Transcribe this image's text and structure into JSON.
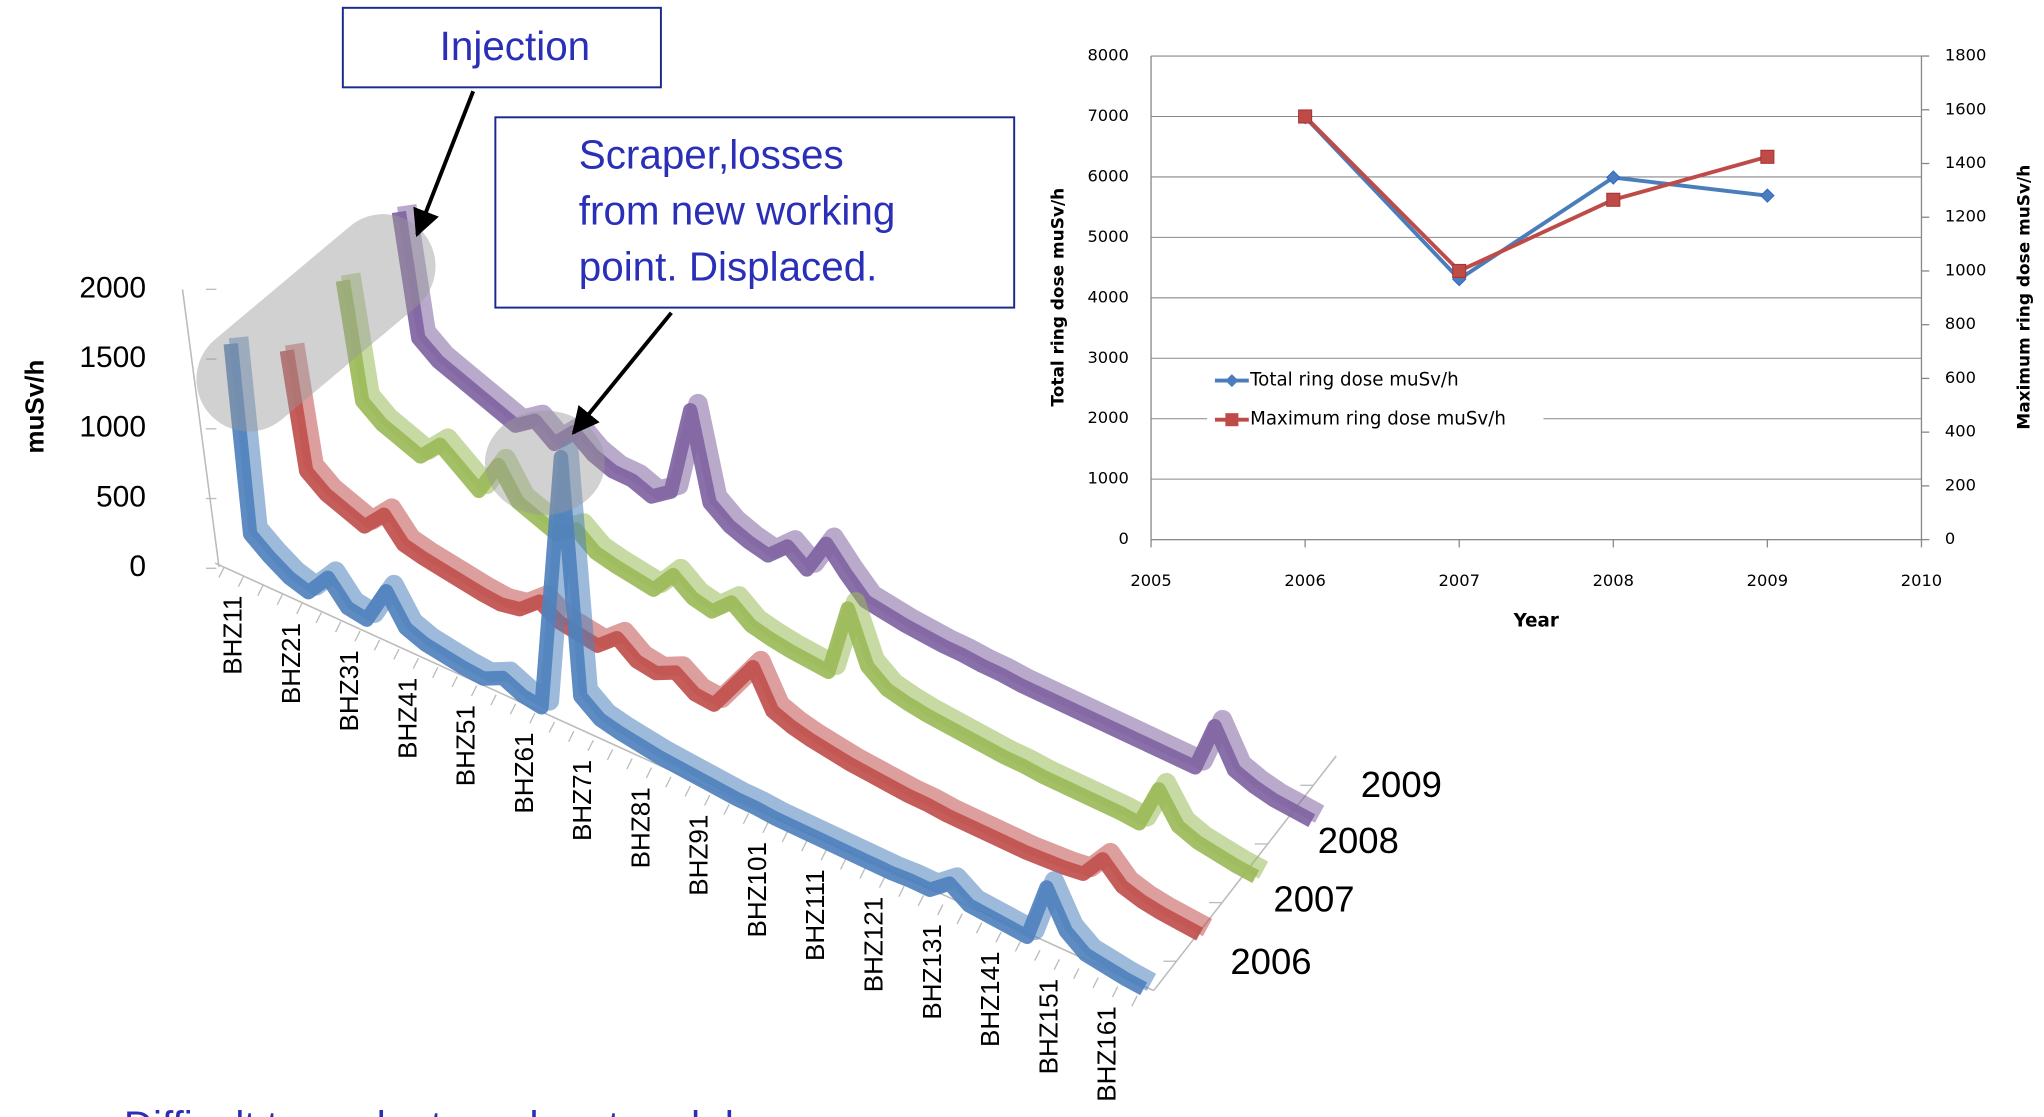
{
  "chart_data": [
    {
      "type": "ribbon3d",
      "y_label": "muSv/h",
      "ylim": [
        0,
        2000
      ],
      "yticks": [
        0,
        500,
        1000,
        1500,
        2000
      ],
      "categories": [
        "BHZ11",
        null,
        null,
        "BHZ21",
        null,
        null,
        "BHZ31",
        null,
        null,
        "BHZ41",
        null,
        null,
        "BHZ51",
        null,
        null,
        "BHZ61",
        null,
        null,
        "BHZ71",
        null,
        null,
        "BHZ81",
        null,
        null,
        "BHZ91",
        null,
        null,
        "BHZ101",
        null,
        null,
        "BHZ111",
        null,
        null,
        "BHZ121",
        null,
        null,
        "BHZ131",
        null,
        null,
        "BHZ141",
        null,
        null,
        "BHZ151",
        null,
        null,
        "BHZ161",
        null,
        null
      ],
      "series": [
        {
          "name": "2006",
          "color": "#4f81bd",
          "values": [
            1600,
            300,
            200,
            120,
            80,
            250,
            100,
            80,
            350,
            150,
            100,
            80,
            60,
            50,
            120,
            60,
            40,
            1900,
            250,
            150,
            120,
            100,
            80,
            70,
            60,
            50,
            40,
            40,
            30,
            30,
            30,
            30,
            30,
            30,
            30,
            40,
            40,
            150,
            60,
            50,
            40,
            30,
            450,
            200,
            100,
            80,
            60,
            50
          ]
        },
        {
          "name": "2007",
          "color": "#c0504d",
          "values": [
            1150,
            350,
            250,
            200,
            150,
            300,
            150,
            120,
            100,
            80,
            60,
            50,
            80,
            200,
            120,
            100,
            80,
            200,
            100,
            80,
            150,
            60,
            50,
            250,
            450,
            200,
            150,
            120,
            100,
            80,
            70,
            60,
            50,
            50,
            40,
            40,
            40,
            40,
            40,
            50,
            60,
            80,
            250,
            120,
            80,
            60,
            50,
            40
          ]
        },
        {
          "name": "2008",
          "color": "#9bbb59",
          "values": [
            1250,
            450,
            350,
            300,
            250,
            400,
            300,
            200,
            450,
            250,
            200,
            150,
            250,
            150,
            120,
            100,
            80,
            250,
            150,
            120,
            250,
            150,
            120,
            100,
            90,
            80,
            600,
            250,
            150,
            120,
            100,
            90,
            80,
            70,
            60,
            60,
            50,
            50,
            50,
            50,
            50,
            40,
            350,
            150,
            100,
            80,
            60,
            50
          ]
        },
        {
          "name": "2009",
          "color": "#8064a2",
          "values": [
            1340,
            500,
            400,
            350,
            300,
            250,
            200,
            300,
            200,
            350,
            250,
            200,
            200,
            150,
            250,
            900,
            300,
            200,
            150,
            120,
            250,
            150,
            400,
            250,
            120,
            100,
            80,
            70,
            60,
            60,
            50,
            50,
            40,
            40,
            40,
            40,
            40,
            40,
            40,
            40,
            40,
            40,
            400,
            150,
            100,
            70,
            60,
            50
          ]
        }
      ],
      "annotations": [
        [
          "Injection"
        ],
        [
          "Scraper,losses",
          "from new working",
          "point. Displaced."
        ]
      ]
    },
    {
      "type": "line",
      "x_label": "Year",
      "y_label": "Total ring dose muSv/h",
      "y2_label": "Maximum ring dose muSv/h",
      "x": [
        2006,
        2007,
        2008,
        2009
      ],
      "xlim": [
        2005,
        2010
      ],
      "xticks": [
        2005,
        2006,
        2007,
        2008,
        2009,
        2010
      ],
      "ylim": [
        0,
        8000
      ],
      "yticks": [
        0,
        1000,
        2000,
        3000,
        4000,
        5000,
        6000,
        7000,
        8000
      ],
      "y2lim": [
        0,
        1800
      ],
      "y2ticks": [
        0,
        200,
        400,
        600,
        800,
        1000,
        1200,
        1400,
        1600,
        1800
      ],
      "grid": true,
      "series": [
        {
          "name": "Total ring dose muSv/h",
          "color": "#4a7ebb",
          "marker": "diamond",
          "values": [
            6990,
            4310,
            5990,
            5690
          ]
        },
        {
          "name": "Maximum ring dose muSv/h",
          "color": "#be4b48",
          "marker": "square",
          "axis": "y2",
          "values": [
            1575,
            1000,
            1265,
            1425
          ]
        }
      ]
    }
  ],
  "footer": "Difficult to evaluate a clear trend due"
}
